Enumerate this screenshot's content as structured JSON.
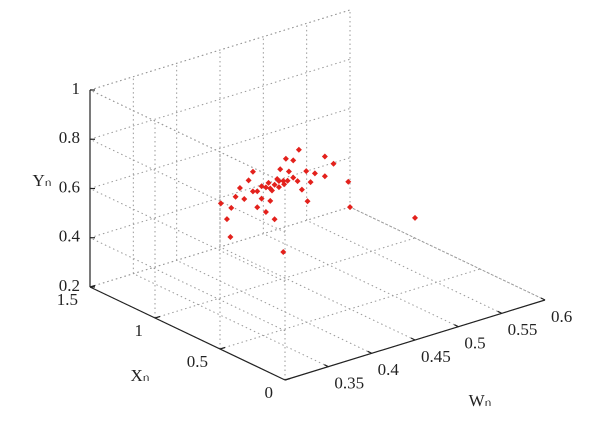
{
  "chart_data": {
    "type": "scatter3d",
    "y_label": "Yₙ",
    "x_label": "Xₙ",
    "w_label": "Wₙ",
    "ylim": [
      0.2,
      1
    ],
    "yticks": [
      0.2,
      0.4,
      0.6,
      0.8,
      1
    ],
    "xlim": [
      0,
      1.5
    ],
    "xticks": [
      0,
      0.5,
      1,
      1.5
    ],
    "wlim": [
      0.3,
      0.6
    ],
    "wticks": [
      0.35,
      0.4,
      0.45,
      0.5,
      0.55,
      0.6
    ],
    "grid": true,
    "series": [
      {
        "color": "#e3211c",
        "w": [
          0.435,
          0.44,
          0.43,
          0.445,
          0.425,
          0.438,
          0.432,
          0.45,
          0.42,
          0.44,
          0.428,
          0.446,
          0.455,
          0.415,
          0.46,
          0.41,
          0.47,
          0.4,
          0.45,
          0.42,
          0.44,
          0.43,
          0.465,
          0.405,
          0.48,
          0.39,
          0.455,
          0.415,
          0.475,
          0.395,
          0.445,
          0.425,
          0.49,
          0.385,
          0.46,
          0.41,
          0.5,
          0.38,
          0.47,
          0.435,
          0.52,
          0.522,
          0.597,
          0.384,
          0.445,
          0.37,
          0.49
        ],
        "x": [
          0.98,
          0.98,
          0.98,
          0.98,
          0.98,
          0.98,
          0.98,
          0.98,
          0.98,
          0.98,
          0.98,
          0.98,
          0.97,
          0.98,
          0.97,
          0.98,
          0.97,
          0.98,
          0.97,
          0.98,
          0.97,
          0.98,
          0.97,
          0.98,
          0.97,
          0.98,
          0.97,
          0.98,
          0.97,
          0.98,
          0.96,
          0.98,
          0.96,
          0.98,
          0.96,
          0.98,
          0.96,
          0.98,
          0.96,
          0.98,
          0.98,
          0.98,
          0.98,
          0.98,
          0.98,
          0.96,
          0.96
        ],
        "y": [
          0.6,
          0.61,
          0.59,
          0.605,
          0.6,
          0.62,
          0.58,
          0.6,
          0.61,
          0.585,
          0.615,
          0.59,
          0.61,
          0.595,
          0.59,
          0.6,
          0.62,
          0.58,
          0.64,
          0.56,
          0.66,
          0.54,
          0.55,
          0.65,
          0.6,
          0.6,
          0.68,
          0.53,
          0.57,
          0.63,
          0.7,
          0.5,
          0.58,
          0.56,
          0.72,
          0.68,
          0.62,
          0.52,
          0.5,
          0.46,
          0.52,
          0.415,
          0.29,
          0.443,
          0.316,
          0.6,
          0.66
        ]
      }
    ]
  }
}
